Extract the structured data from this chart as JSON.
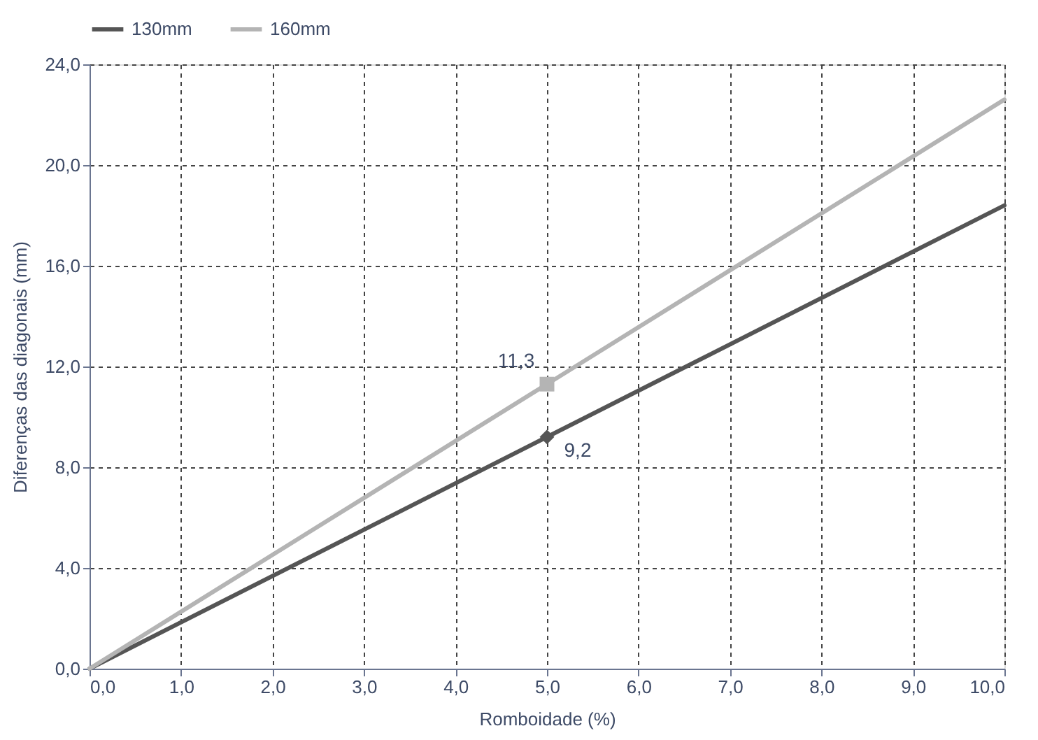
{
  "chart_data": {
    "type": "line",
    "xlabel": "Romboidade (%)",
    "ylabel": "Diferenças das diagonais (mm)",
    "series": [
      {
        "name": "130mm",
        "color": "#555555",
        "x": [
          0,
          5,
          10
        ],
        "values": [
          0,
          9.2,
          18.4
        ]
      },
      {
        "name": "160mm",
        "color": "#b4b4b4",
        "x": [
          0,
          5,
          10
        ],
        "values": [
          0,
          11.3,
          22.6
        ]
      },
      {
        "type": "scatter",
        "color": "#555555",
        "marker": "diamond",
        "x": [
          5
        ],
        "values": [
          9.2
        ]
      },
      {
        "type": "scatter",
        "color": "#b4b4b4",
        "marker": "square",
        "x": [
          5
        ],
        "values": [
          11.3
        ]
      }
    ],
    "annotations": [
      {
        "text": "11,3",
        "x": 5,
        "y": 11.3
      },
      {
        "text": "9,2",
        "x": 5,
        "y": 9.2
      }
    ],
    "xlim": [
      0,
      10
    ],
    "ylim": [
      0,
      24
    ],
    "xticks": [
      {
        "value": 0,
        "label": "0,0"
      },
      {
        "value": 1,
        "label": "1,0"
      },
      {
        "value": 2,
        "label": "2,0"
      },
      {
        "value": 3,
        "label": "3,0"
      },
      {
        "value": 4,
        "label": "4,0"
      },
      {
        "value": 5,
        "label": "5,0"
      },
      {
        "value": 6,
        "label": "6,0"
      },
      {
        "value": 7,
        "label": "7,0"
      },
      {
        "value": 8,
        "label": "8,0"
      },
      {
        "value": 9,
        "label": "9,0"
      },
      {
        "value": 10,
        "label": "10,0"
      }
    ],
    "yticks": [
      {
        "value": 0,
        "label": "0,0"
      },
      {
        "value": 4,
        "label": "4,0"
      },
      {
        "value": 8,
        "label": "8,0"
      },
      {
        "value": 12,
        "label": "12,0"
      },
      {
        "value": 16,
        "label": "16,0"
      },
      {
        "value": 20,
        "label": "20,0"
      },
      {
        "value": 24,
        "label": "24,0"
      }
    ],
    "grid": true,
    "legend": "top",
    "line_style": "solid"
  }
}
